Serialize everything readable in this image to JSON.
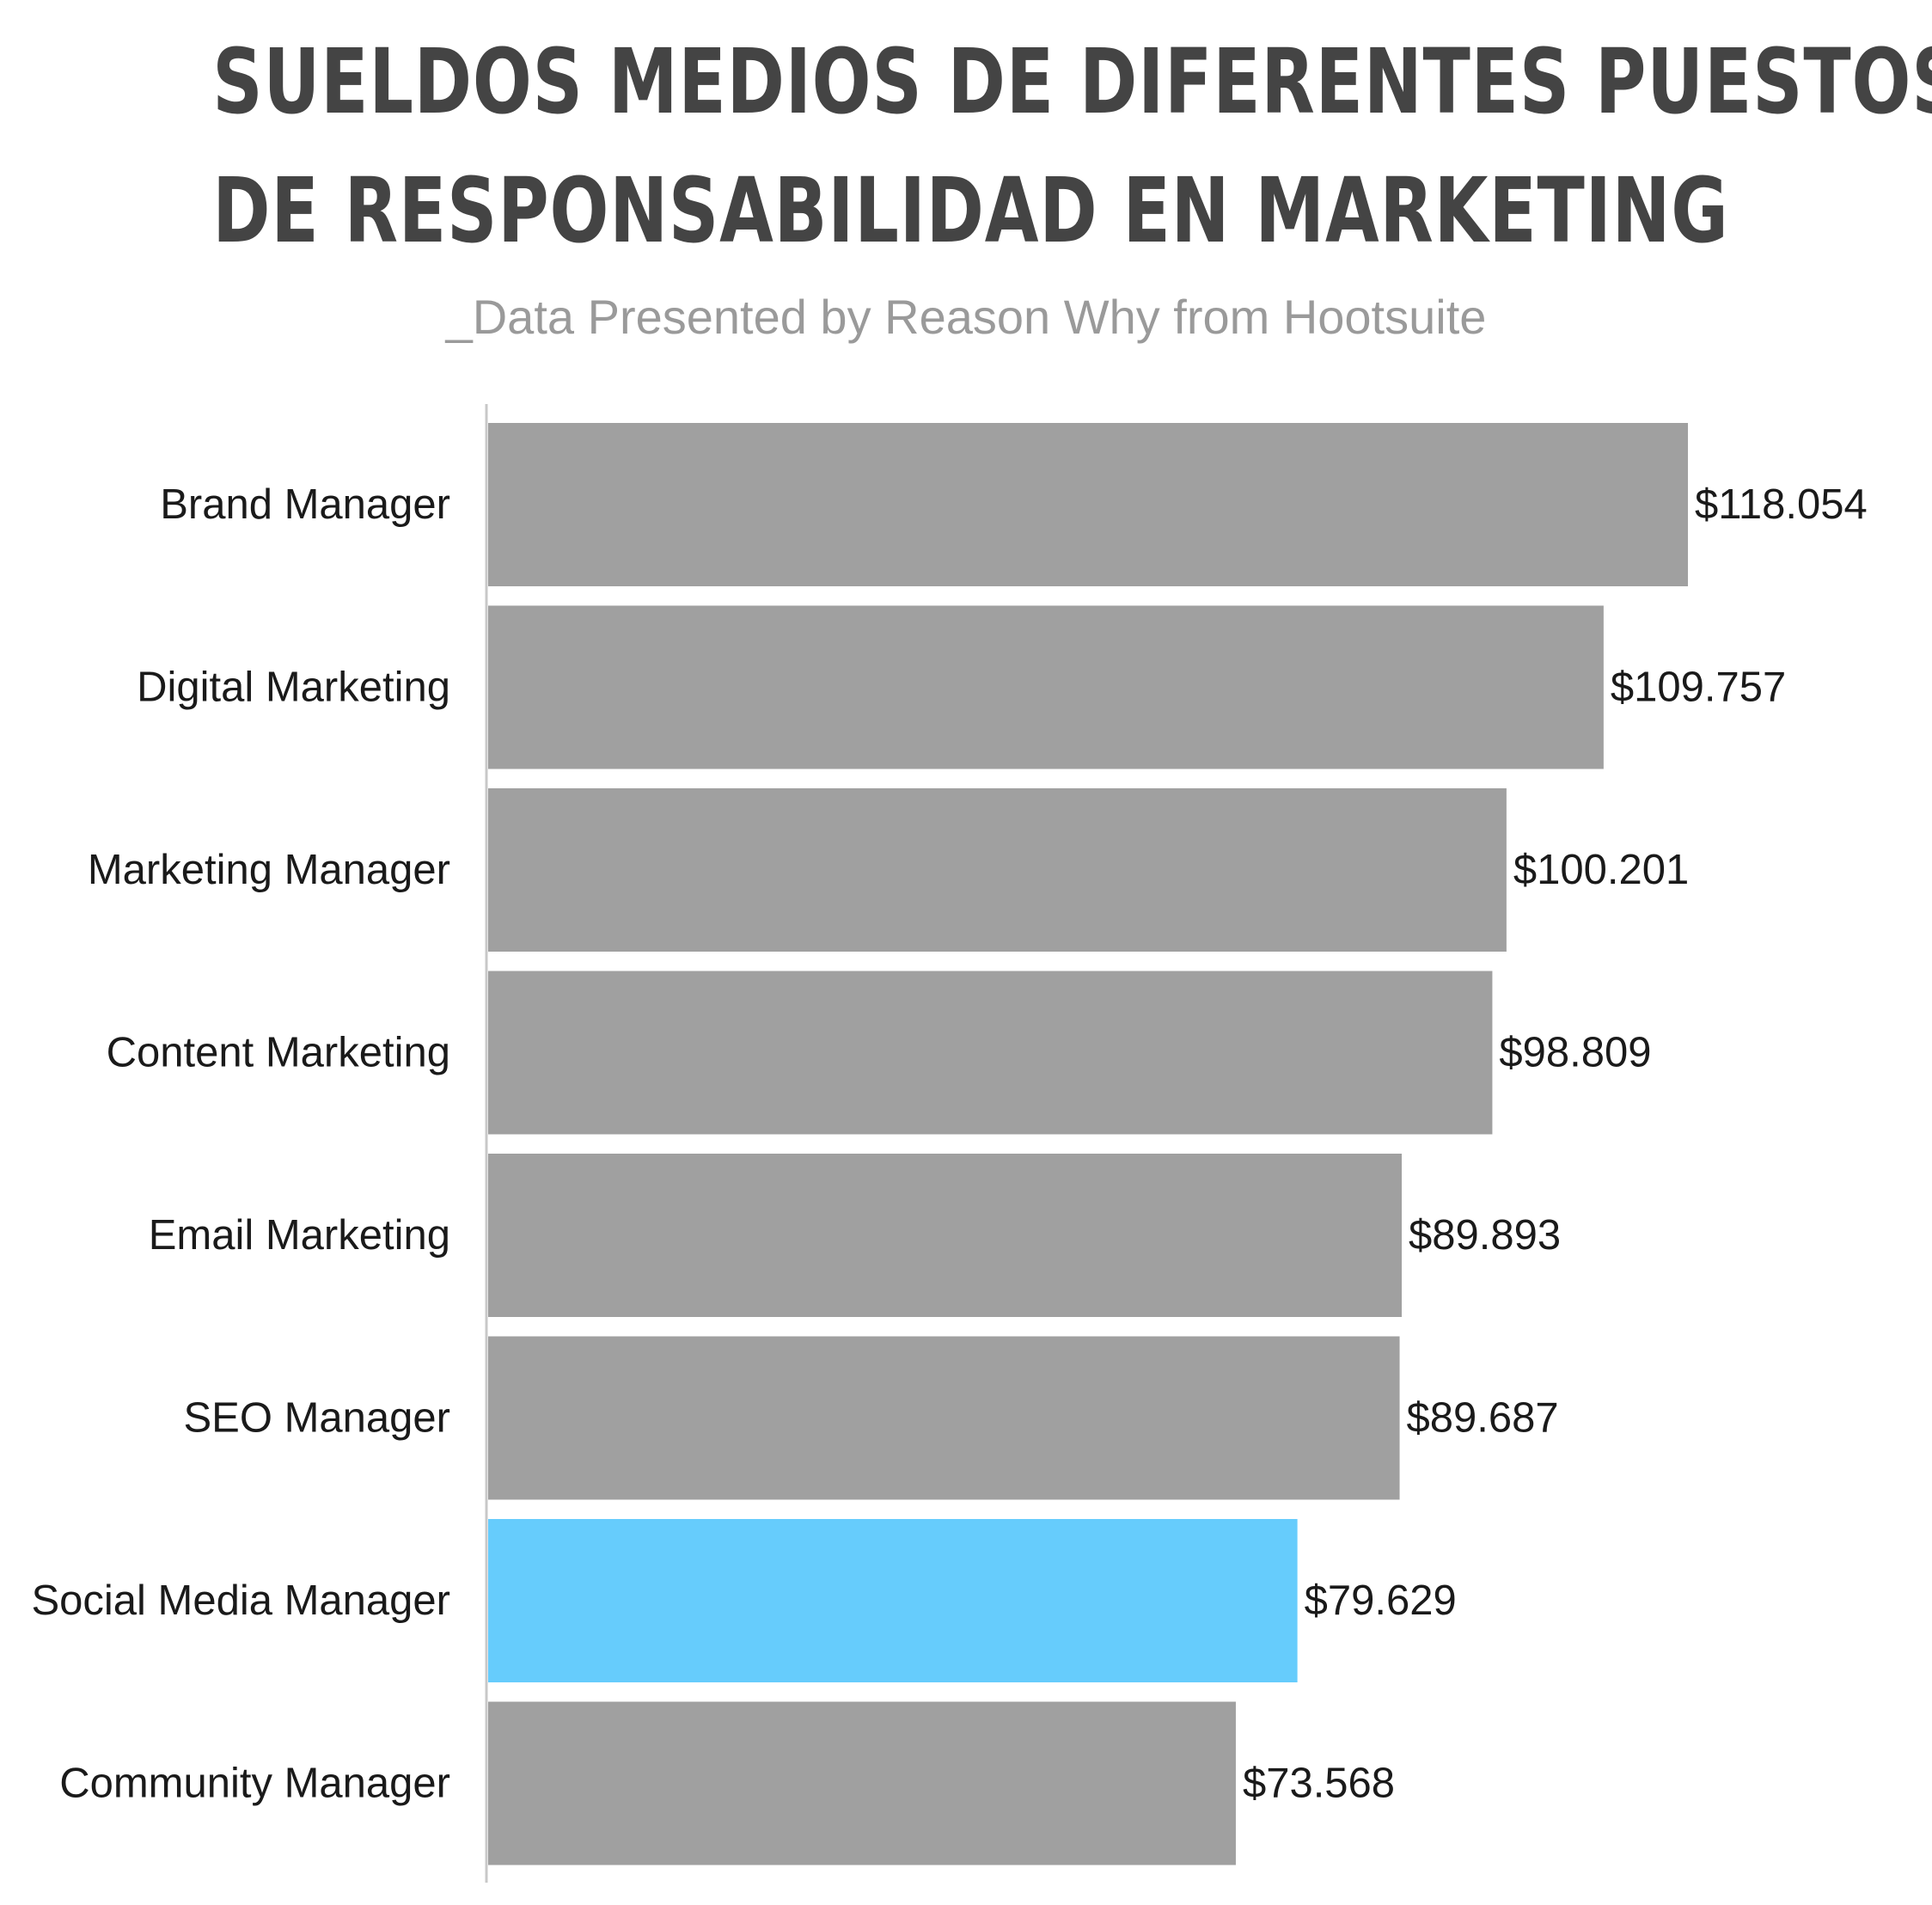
{
  "title_lines": [
    "SUELDOS MEDIOS DE DIFERENTES PUESTOS",
    "DE RESPONSABILIDAD EN MARKETING"
  ],
  "subtitle": "_Data Presented by Reason Why from Hootsuite",
  "colors": {
    "bar": "#a0a0a0",
    "highlight": "#66ccfc",
    "axis": "#c8c8c8",
    "title": "#444444",
    "subtitle": "#9a9a9a"
  },
  "chart_data": {
    "type": "bar",
    "orientation": "horizontal",
    "title": "SUELDOS MEDIOS DE DIFERENTES PUESTOS DE RESPONSABILIDAD EN MARKETING",
    "subtitle": "_Data Presented by Reason Why from Hootsuite",
    "categories": [
      "Brand Manager",
      "Digital Marketing",
      "Marketing Manager",
      "Content Marketing",
      "Email Marketing",
      "SEO Manager",
      "Social Media Manager",
      "Community Manager"
    ],
    "values": [
      118054,
      109757,
      100201,
      98809,
      89893,
      89687,
      79629,
      73568
    ],
    "value_labels": [
      "$118.054",
      "$109.757",
      "$100.201",
      "$98.809",
      "$89.893",
      "$89.687",
      "$79.629",
      "$73.568"
    ],
    "highlight_category": "Social Media Manager",
    "xlim": [
      0,
      118054
    ],
    "xlabel": "",
    "ylabel": "",
    "grid": false,
    "legend": "none"
  }
}
